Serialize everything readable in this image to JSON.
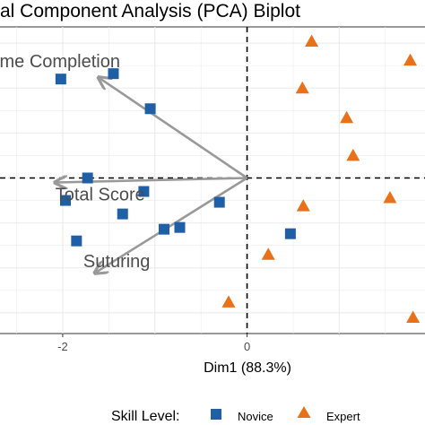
{
  "chart_data": {
    "type": "scatter",
    "title": "al Component Analysis (PCA) Biplot",
    "xlabel": "Dim1 (88.3%)",
    "ylabel": "",
    "xlim": [
      -2.68,
      1.93
    ],
    "ylim": [
      -1.73,
      1.68
    ],
    "x_ticks": [
      -2,
      0
    ],
    "x_tick_labels": [
      "-2",
      "0"
    ],
    "grid": true,
    "legend_position": "bottom",
    "legend_title": "Skill Level:",
    "series": [
      {
        "name": "Novice",
        "marker": "square",
        "color": "#1f5fa6",
        "points": [
          {
            "x": -2.02,
            "y": 1.1
          },
          {
            "x": -1.45,
            "y": 1.16
          },
          {
            "x": -1.05,
            "y": 0.77
          },
          {
            "x": -1.73,
            "y": 0.0
          },
          {
            "x": -1.12,
            "y": -0.15
          },
          {
            "x": -1.97,
            "y": -0.25
          },
          {
            "x": -1.35,
            "y": -0.4
          },
          {
            "x": -0.3,
            "y": -0.27
          },
          {
            "x": -0.73,
            "y": -0.55
          },
          {
            "x": -0.9,
            "y": -0.57
          },
          {
            "x": -1.85,
            "y": -0.7
          },
          {
            "x": 0.47,
            "y": -0.62
          }
        ]
      },
      {
        "name": "Expert",
        "marker": "triangle",
        "color": "#e8711a",
        "points": [
          {
            "x": 0.7,
            "y": 1.52
          },
          {
            "x": 1.77,
            "y": 1.31
          },
          {
            "x": 0.6,
            "y": 1.0
          },
          {
            "x": 1.08,
            "y": 0.67
          },
          {
            "x": 1.15,
            "y": 0.25
          },
          {
            "x": 1.55,
            "y": -0.22
          },
          {
            "x": 0.61,
            "y": -0.31
          },
          {
            "x": 0.23,
            "y": -0.85
          },
          {
            "x": -0.2,
            "y": -1.38
          },
          {
            "x": 1.8,
            "y": -1.55
          }
        ]
      }
    ],
    "arrows": [
      {
        "label": "ime Completion",
        "x": -1.6,
        "y": 1.11
      },
      {
        "label": "Total Score",
        "x": -2.07,
        "y": -0.05
      },
      {
        "label": "Suturing",
        "x": -1.64,
        "y": -1.05
      }
    ]
  }
}
